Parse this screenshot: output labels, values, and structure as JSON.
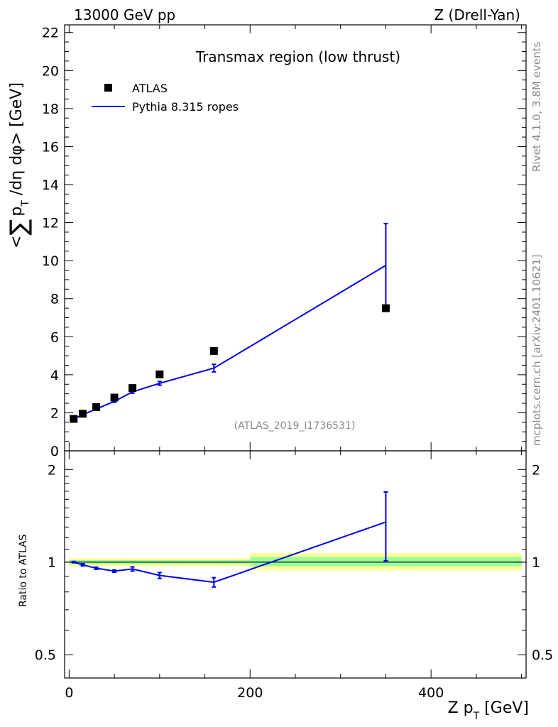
{
  "header": {
    "left": "13000 GeV pp",
    "right": "Z (Drell-Yan)"
  },
  "side_labels": {
    "rivet": "Rivet 4.1.0,  3.8M events",
    "mcplots": "mcplots.cern.ch [arXiv:2401.10621]"
  },
  "colors": {
    "mc": "#0000ee",
    "data": "#000000",
    "band_inner": "#99ff99",
    "band_outer": "#ffff99",
    "watermark": "#888888"
  },
  "chart_data": [
    {
      "type": "scatter",
      "title": "Transmax region (low thrust)",
      "watermark": "(ATLAS_2019_I1736531)",
      "ylabel": "<∑p_T/dη dφ> [GeV]",
      "ylabel_parts": {
        "open": "<",
        "sum": "∑",
        "p": "p",
        "T": "T",
        "rest": " /dη dφ> [GeV]"
      },
      "xlabel": "",
      "xlim": [
        -5,
        505
      ],
      "ylim": [
        0,
        22.4
      ],
      "yticks": [
        0,
        2,
        4,
        6,
        8,
        10,
        12,
        14,
        16,
        18,
        20,
        22
      ],
      "ytick_labels": [
        "0",
        "2",
        "4",
        "6",
        "8",
        "10",
        "12",
        "14",
        "16",
        "18",
        "20",
        "22"
      ],
      "legend_position": "top-left",
      "series": [
        {
          "name": "ATLAS",
          "kind": "points",
          "x": [
            5,
            15,
            30,
            50,
            70,
            100,
            160,
            350
          ],
          "y": [
            1.68,
            1.95,
            2.3,
            2.8,
            3.3,
            4.02,
            5.25,
            7.5
          ]
        },
        {
          "name": "Pythia 8.315 ropes",
          "kind": "line",
          "x": [
            5,
            15,
            30,
            50,
            70,
            100,
            160,
            350
          ],
          "y": [
            1.68,
            1.9,
            2.2,
            2.6,
            3.1,
            3.55,
            4.35,
            9.75
          ],
          "yerr": [
            0.02,
            0.03,
            0.04,
            0.05,
            0.07,
            0.1,
            0.2,
            2.2
          ]
        }
      ]
    },
    {
      "type": "line",
      "title": "",
      "ylabel": "Ratio to ATLAS",
      "xlabel": "Z p_T [GeV]",
      "xlabel_parts": {
        "main": "Z p",
        "sub": "T",
        "rest": " [GeV]"
      },
      "xlim": [
        -5,
        505
      ],
      "ylim": [
        0.42,
        2.3
      ],
      "scale": "log",
      "yticks": [
        0.5,
        1,
        2
      ],
      "ytick_labels": [
        "0.5",
        "1",
        "2"
      ],
      "xticks": [
        0,
        200,
        400
      ],
      "xtick_labels": [
        "0",
        "200",
        "400"
      ],
      "bands": [
        {
          "x0": 0,
          "x1": 200,
          "inner": [
            0.985,
            1.015
          ],
          "outer": [
            0.97,
            1.03
          ]
        },
        {
          "x0": 200,
          "x1": 500,
          "inner": [
            0.97,
            1.04
          ],
          "outer": [
            0.94,
            1.07
          ]
        }
      ],
      "series": [
        {
          "name": "Pythia 8.315 ropes / ATLAS",
          "x": [
            5,
            15,
            30,
            50,
            70,
            100,
            160,
            350
          ],
          "y": [
            1.0,
            0.98,
            0.955,
            0.935,
            0.95,
            0.905,
            0.86,
            1.35
          ],
          "yerr": [
            0.005,
            0.008,
            0.008,
            0.008,
            0.015,
            0.02,
            0.03,
            0.34
          ]
        }
      ]
    }
  ]
}
